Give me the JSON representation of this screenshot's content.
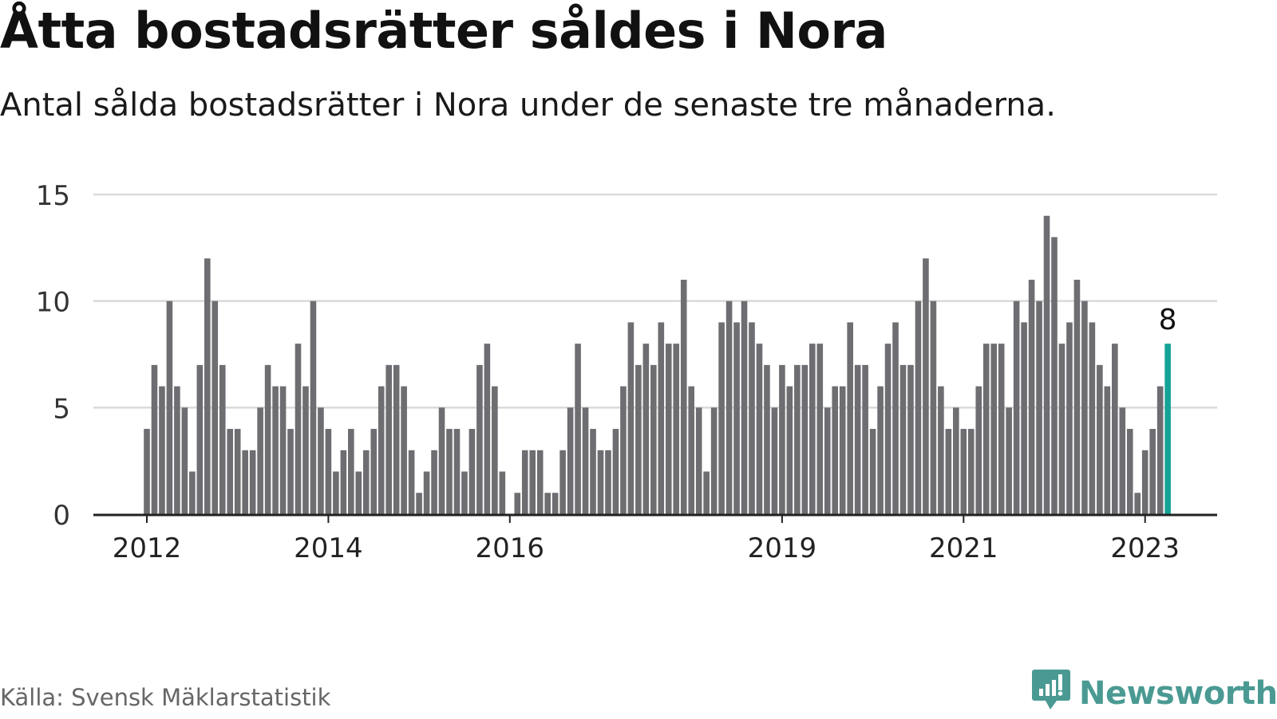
{
  "header": {
    "title": "Åtta bostadsrätter såldes i Nora",
    "subtitle": "Antal sålda bostadsrätter i Nora under de senaste tre månaderna."
  },
  "footer": {
    "source": "Källa: Svensk Mäklarstatistik",
    "brand": "Newsworthy"
  },
  "colors": {
    "bar": "#6e6d72",
    "highlight": "#16a397",
    "grid": "#d9d9d9",
    "axis": "#222222",
    "brand": "#4a9a93"
  },
  "chart_data": {
    "type": "bar",
    "title": "Åtta bostadsrätter såldes i Nora",
    "subtitle": "Antal sålda bostadsrätter i Nora under de senaste tre månaderna.",
    "xlabel": "",
    "ylabel": "",
    "ylim": [
      0,
      15
    ],
    "yticks": [
      0,
      5,
      10,
      15
    ],
    "grid": true,
    "legend": "none",
    "x_tick_labels": [
      {
        "label": "2012",
        "index": 0
      },
      {
        "label": "2014",
        "index": 24
      },
      {
        "label": "2016",
        "index": 48
      },
      {
        "label": "2019",
        "index": 84
      },
      {
        "label": "2021",
        "index": 108
      },
      {
        "label": "2023",
        "index": 132
      }
    ],
    "start": "2012-01",
    "values": [
      4,
      7,
      6,
      10,
      6,
      5,
      2,
      7,
      12,
      10,
      7,
      4,
      4,
      3,
      3,
      5,
      7,
      6,
      6,
      4,
      8,
      6,
      10,
      5,
      4,
      2,
      3,
      4,
      2,
      3,
      4,
      6,
      7,
      7,
      6,
      3,
      1,
      2,
      3,
      5,
      4,
      4,
      2,
      4,
      7,
      8,
      6,
      2,
      0,
      1,
      3,
      3,
      3,
      1,
      1,
      3,
      5,
      8,
      5,
      4,
      3,
      3,
      4,
      6,
      9,
      7,
      8,
      7,
      9,
      8,
      8,
      11,
      6,
      5,
      2,
      5,
      9,
      10,
      9,
      10,
      9,
      8,
      7,
      5,
      7,
      6,
      7,
      7,
      8,
      8,
      5,
      6,
      6,
      9,
      7,
      7,
      4,
      6,
      8,
      9,
      7,
      7,
      10,
      12,
      10,
      6,
      4,
      5,
      4,
      4,
      6,
      8,
      8,
      8,
      5,
      10,
      9,
      11,
      10,
      14,
      13,
      8,
      9,
      11,
      10,
      9,
      7,
      6,
      8,
      5,
      4,
      1,
      3,
      4,
      6,
      8
    ],
    "highlight": {
      "index": 135,
      "value": 8,
      "label": "8"
    }
  }
}
